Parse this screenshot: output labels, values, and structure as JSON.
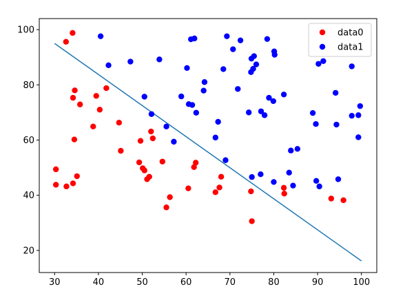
{
  "chart_data": {
    "type": "scatter",
    "title": "",
    "xlabel": "",
    "ylabel": "",
    "xlim": [
      26.5,
      103.5
    ],
    "ylim": [
      12,
      104
    ],
    "xticks": [
      30,
      40,
      50,
      60,
      70,
      80,
      90,
      100
    ],
    "yticks": [
      20,
      40,
      60,
      80,
      100
    ],
    "grid": false,
    "legend_position": "top-right",
    "series": [
      {
        "name": "data0",
        "kind": "points",
        "color": "#ff0000",
        "points": [
          [
            34.1,
            98.8
          ],
          [
            32.6,
            95.6
          ],
          [
            30.3,
            49.4
          ],
          [
            30.3,
            43.8
          ],
          [
            32.7,
            43.2
          ],
          [
            34.2,
            44.3
          ],
          [
            35.1,
            46.9
          ],
          [
            34.5,
            60.2
          ],
          [
            34.6,
            78.0
          ],
          [
            34.2,
            75.3
          ],
          [
            35.8,
            72.9
          ],
          [
            39.5,
            76.0
          ],
          [
            40.3,
            71.0
          ],
          [
            41.8,
            78.8
          ],
          [
            38.8,
            64.9
          ],
          [
            44.7,
            66.3
          ],
          [
            45.1,
            56.1
          ],
          [
            49.6,
            59.7
          ],
          [
            52.0,
            63.1
          ],
          [
            52.4,
            60.6
          ],
          [
            49.3,
            51.9
          ],
          [
            50.1,
            49.8
          ],
          [
            50.5,
            49.0
          ],
          [
            51.1,
            45.8
          ],
          [
            51.6,
            46.7
          ],
          [
            54.6,
            52.2
          ],
          [
            55.5,
            35.6
          ],
          [
            56.3,
            39.3
          ],
          [
            60.5,
            42.5
          ],
          [
            61.8,
            50.2
          ],
          [
            62.2,
            51.8
          ],
          [
            66.7,
            41.1
          ],
          [
            67.6,
            42.8
          ],
          [
            68.0,
            46.7
          ],
          [
            74.8,
            41.4
          ],
          [
            75.0,
            30.6
          ],
          [
            82.3,
            42.7
          ],
          [
            82.4,
            40.6
          ],
          [
            93.1,
            38.8
          ],
          [
            95.9,
            38.2
          ]
        ]
      },
      {
        "name": "data1",
        "kind": "points",
        "color": "#0000ff",
        "points": [
          [
            40.5,
            97.6
          ],
          [
            42.3,
            87.1
          ],
          [
            47.3,
            88.4
          ],
          [
            53.9,
            89.2
          ],
          [
            50.5,
            75.7
          ],
          [
            52.1,
            69.4
          ],
          [
            55.5,
            64.9
          ],
          [
            57.2,
            59.4
          ],
          [
            58.9,
            75.8
          ],
          [
            60.2,
            86.1
          ],
          [
            60.6,
            73.0
          ],
          [
            61.1,
            96.5
          ],
          [
            61.4,
            72.7
          ],
          [
            61.9,
            96.8
          ],
          [
            62.3,
            69.9
          ],
          [
            64.0,
            77.9
          ],
          [
            64.2,
            81.0
          ],
          [
            66.7,
            60.9
          ],
          [
            67.3,
            66.6
          ],
          [
            68.5,
            85.7
          ],
          [
            69.0,
            52.7
          ],
          [
            69.3,
            97.6
          ],
          [
            70.7,
            92.9
          ],
          [
            71.8,
            78.5
          ],
          [
            72.4,
            96.1
          ],
          [
            74.3,
            70.0
          ],
          [
            74.8,
            84.6
          ],
          [
            74.9,
            89.5
          ],
          [
            75.3,
            85.8
          ],
          [
            75.5,
            90.4
          ],
          [
            76.0,
            87.4
          ],
          [
            75.0,
            46.6
          ],
          [
            77.0,
            47.6
          ],
          [
            77.1,
            70.4
          ],
          [
            77.9,
            69.0
          ],
          [
            78.5,
            96.6
          ],
          [
            78.9,
            75.3
          ],
          [
            79.9,
            74.1
          ],
          [
            80.1,
            92.1
          ],
          [
            80.2,
            90.9
          ],
          [
            80.0,
            44.8
          ],
          [
            82.3,
            76.5
          ],
          [
            83.5,
            48.2
          ],
          [
            83.9,
            56.2
          ],
          [
            84.4,
            43.5
          ],
          [
            85.4,
            56.8
          ],
          [
            88.9,
            69.8
          ],
          [
            89.6,
            65.8
          ],
          [
            89.7,
            45.2
          ],
          [
            90.2,
            87.6
          ],
          [
            90.4,
            43.2
          ],
          [
            91.3,
            88.6
          ],
          [
            94.1,
            77.1
          ],
          [
            94.3,
            65.6
          ],
          [
            94.7,
            45.8
          ],
          [
            97.8,
            86.7
          ],
          [
            97.8,
            68.8
          ],
          [
            99.3,
            69.0
          ],
          [
            99.7,
            72.3
          ],
          [
            99.3,
            61.0
          ]
        ]
      },
      {
        "kind": "line",
        "color": "#1f77b4",
        "points": [
          [
            30,
            95.0
          ],
          [
            100,
            16.2
          ]
        ]
      }
    ]
  }
}
